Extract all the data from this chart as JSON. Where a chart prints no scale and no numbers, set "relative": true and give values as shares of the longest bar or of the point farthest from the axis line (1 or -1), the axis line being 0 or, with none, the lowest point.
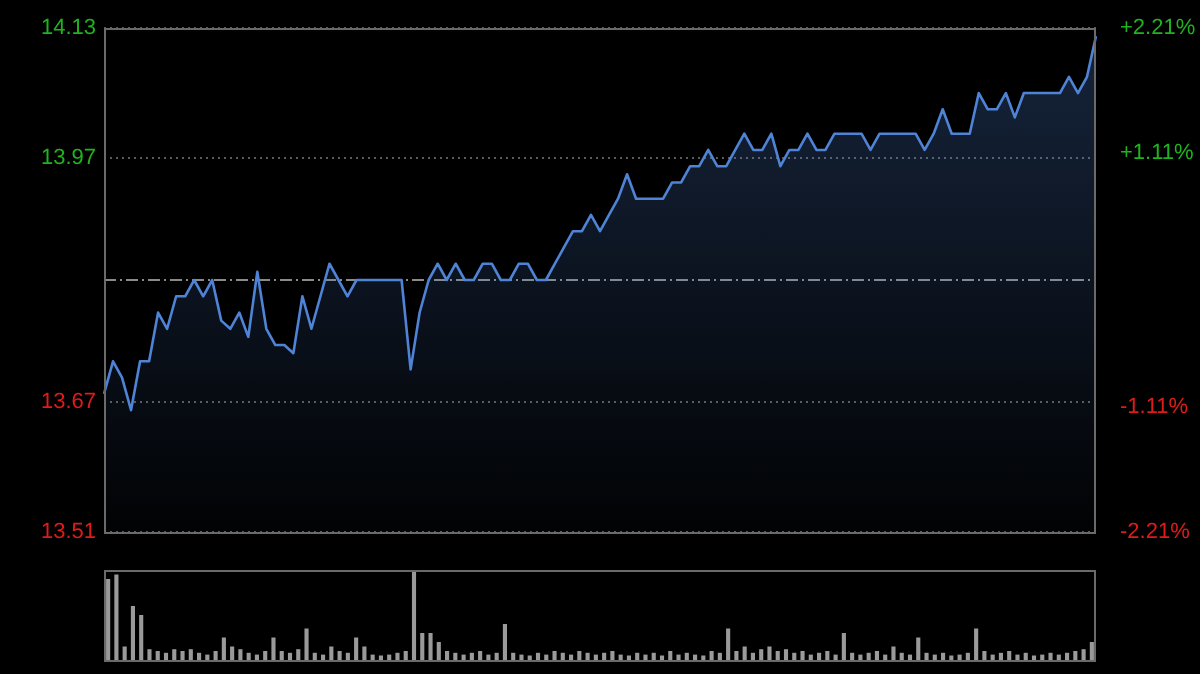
{
  "chart_data": [
    {
      "type": "area",
      "categories": [
        null,
        null,
        null,
        null,
        null,
        null,
        null,
        null,
        null,
        null,
        null,
        null,
        null,
        null,
        null,
        null,
        null,
        null,
        null,
        null,
        null,
        null,
        null,
        null,
        null,
        null,
        null,
        null,
        null,
        null,
        null,
        null,
        null,
        null,
        null,
        null,
        null,
        null,
        null,
        null,
        null,
        null,
        null,
        null,
        null,
        null,
        null,
        null,
        null,
        null,
        null,
        null,
        null,
        null,
        null,
        null,
        null,
        null,
        null,
        null,
        null,
        null,
        null,
        null,
        null,
        null,
        null,
        null,
        null,
        null,
        null,
        null,
        null,
        null,
        null,
        null,
        null,
        null,
        null,
        null,
        null,
        null,
        null,
        null,
        null,
        null,
        null,
        null,
        null,
        null,
        null,
        null,
        null,
        null,
        null,
        null,
        null,
        null,
        null,
        null,
        null,
        null,
        null,
        null,
        null,
        null,
        null,
        null,
        null,
        null,
        null
      ],
      "series": [
        {
          "color": "#4f83d6",
          "values": [
            13.68,
            13.72,
            13.7,
            13.66,
            13.72,
            13.72,
            13.78,
            13.76,
            13.8,
            13.8,
            13.82,
            13.8,
            13.82,
            13.77,
            13.76,
            13.78,
            13.75,
            13.83,
            13.76,
            13.74,
            13.74,
            13.73,
            13.8,
            13.76,
            13.8,
            13.84,
            13.82,
            13.8,
            13.82,
            13.82,
            13.82,
            13.82,
            13.82,
            13.82,
            13.71,
            13.78,
            13.82,
            13.84,
            13.82,
            13.84,
            13.82,
            13.82,
            13.84,
            13.84,
            13.82,
            13.82,
            13.84,
            13.84,
            13.82,
            13.82,
            13.84,
            13.86,
            13.88,
            13.88,
            13.9,
            13.88,
            13.9,
            13.92,
            13.95,
            13.92,
            13.92,
            13.92,
            13.92,
            13.94,
            13.94,
            13.96,
            13.96,
            13.98,
            13.96,
            13.96,
            13.98,
            14.0,
            13.98,
            13.98,
            14.0,
            13.96,
            13.98,
            13.98,
            14.0,
            13.98,
            13.98,
            14.0,
            14.0,
            14.0,
            14.0,
            13.98,
            14.0,
            14.0,
            14.0,
            14.0,
            14.0,
            13.98,
            14.0,
            14.03,
            14.0,
            14.0,
            14.0,
            14.05,
            14.03,
            14.03,
            14.05,
            14.02,
            14.05,
            14.05,
            14.05,
            14.05,
            14.05,
            14.07,
            14.05,
            14.07,
            14.12
          ]
        }
      ],
      "ylim": [
        13.51,
        14.13
      ],
      "yticks": [
        13.51,
        13.67,
        13.97,
        14.13
      ],
      "y2lim": [
        -2.21,
        2.21
      ],
      "y2ticks": [
        {
          "value": -2.21,
          "label": "-2.21%"
        },
        {
          "value": -1.11,
          "label": "-1.11%"
        },
        {
          "value": 1.11,
          "label": "+1.11%"
        },
        {
          "value": 2.21,
          "label": "+2.21%"
        }
      ],
      "ref_lines": [
        {
          "axis": "y",
          "value": 13.82,
          "color": "#8a8a8a",
          "line_style": "dashdot"
        }
      ],
      "grid": "y",
      "tick_labels": "y"
    },
    {
      "type": "bar",
      "relative": true,
      "tick_labels": false,
      "categories": [
        null,
        null,
        null,
        null,
        null,
        null,
        null,
        null,
        null,
        null,
        null,
        null,
        null,
        null,
        null,
        null,
        null,
        null,
        null,
        null,
        null,
        null,
        null,
        null,
        null,
        null,
        null,
        null,
        null,
        null,
        null,
        null,
        null,
        null,
        null,
        null,
        null,
        null,
        null,
        null,
        null,
        null,
        null,
        null,
        null,
        null,
        null,
        null,
        null,
        null,
        null,
        null,
        null,
        null,
        null,
        null,
        null,
        null,
        null,
        null,
        null,
        null,
        null,
        null,
        null,
        null,
        null,
        null,
        null,
        null,
        null,
        null,
        null,
        null,
        null,
        null,
        null,
        null,
        null,
        null,
        null,
        null,
        null,
        null,
        null,
        null,
        null,
        null,
        null,
        null,
        null,
        null,
        null,
        null,
        null,
        null,
        null,
        null,
        null,
        null,
        null,
        null,
        null,
        null,
        null,
        null,
        null,
        null,
        null,
        null,
        null,
        null,
        null,
        null,
        null,
        null,
        null,
        null,
        null,
        null
      ],
      "series": [
        {
          "color": "#9a9a9a",
          "values": [
            0.9,
            0.95,
            0.15,
            0.6,
            0.5,
            0.12,
            0.1,
            0.08,
            0.12,
            0.1,
            0.12,
            0.08,
            0.06,
            0.1,
            0.25,
            0.15,
            0.12,
            0.08,
            0.06,
            0.1,
            0.25,
            0.1,
            0.08,
            0.12,
            0.35,
            0.08,
            0.06,
            0.15,
            0.1,
            0.08,
            0.25,
            0.15,
            0.06,
            0.05,
            0.06,
            0.08,
            0.1,
            1,
            0.3,
            0.3,
            0.2,
            0.1,
            0.08,
            0.06,
            0.08,
            0.1,
            0.06,
            0.08,
            0.4,
            0.08,
            0.06,
            0.05,
            0.08,
            0.06,
            0.1,
            0.08,
            0.06,
            0.1,
            0.08,
            0.06,
            0.08,
            0.1,
            0.06,
            0.05,
            0.08,
            0.06,
            0.08,
            0.05,
            0.1,
            0.06,
            0.08,
            0.06,
            0.05,
            0.1,
            0.08,
            0.35,
            0.1,
            0.15,
            0.08,
            0.12,
            0.15,
            0.1,
            0.12,
            0.08,
            0.1,
            0.06,
            0.08,
            0.1,
            0.06,
            0.3,
            0.08,
            0.06,
            0.08,
            0.1,
            0.06,
            0.15,
            0.08,
            0.06,
            0.25,
            0.08,
            0.06,
            0.08,
            0.05,
            0.06,
            0.08,
            0.35,
            0.1,
            0.06,
            0.08,
            0.1,
            0.06,
            0.08,
            0.05,
            0.06,
            0.08,
            0.06,
            0.08,
            0.1,
            0.12,
            0.2
          ]
        }
      ]
    }
  ]
}
